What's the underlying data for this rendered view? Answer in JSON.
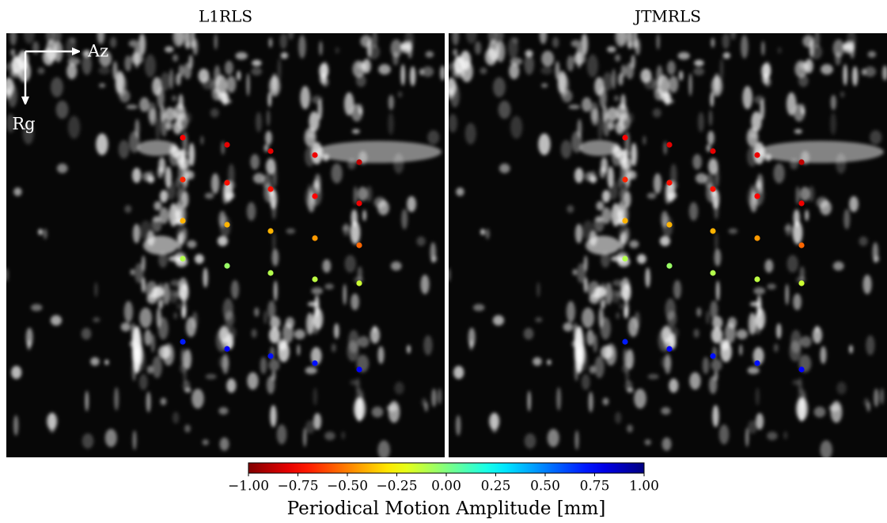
{
  "chart_data": [
    {
      "type": "scatter",
      "title": "L1RLS",
      "values": [
        -0.75,
        -0.68,
        -0.4,
        -0.1,
        0.7,
        -0.8,
        -0.72,
        -0.4,
        -0.05,
        0.75,
        -0.8,
        -0.72,
        -0.4,
        -0.1,
        0.72,
        -0.78,
        -0.75,
        -0.45,
        -0.12,
        0.72,
        -0.88,
        -0.78,
        -0.55,
        -0.15,
        0.75
      ]
    },
    {
      "type": "scatter",
      "title": "JTMRLS",
      "values": [
        -0.75,
        -0.68,
        -0.4,
        -0.1,
        0.7,
        -0.8,
        -0.72,
        -0.4,
        -0.05,
        0.75,
        -0.8,
        -0.72,
        -0.4,
        -0.1,
        0.72,
        -0.78,
        -0.75,
        -0.45,
        -0.12,
        0.72,
        -0.88,
        -0.78,
        -0.55,
        -0.15,
        0.75
      ]
    }
  ],
  "annotations": {
    "azimuth": "Az",
    "range": "Rg"
  },
  "colorbar": {
    "label": "Periodical Motion Amplitude [mm]",
    "lim": [
      -1,
      1
    ],
    "ticks": [
      {
        "value": -1,
        "label": "−1.00"
      },
      {
        "value": -0.75,
        "label": "−0.75"
      },
      {
        "value": -0.5,
        "label": "−0.50"
      },
      {
        "value": -0.25,
        "label": "−0.25"
      },
      {
        "value": 0,
        "label": "0.00"
      },
      0.25,
      {
        "value": 0.5,
        "label": "0.50"
      },
      0.75,
      {
        "value": 1,
        "label": "1.00"
      }
    ]
  }
}
